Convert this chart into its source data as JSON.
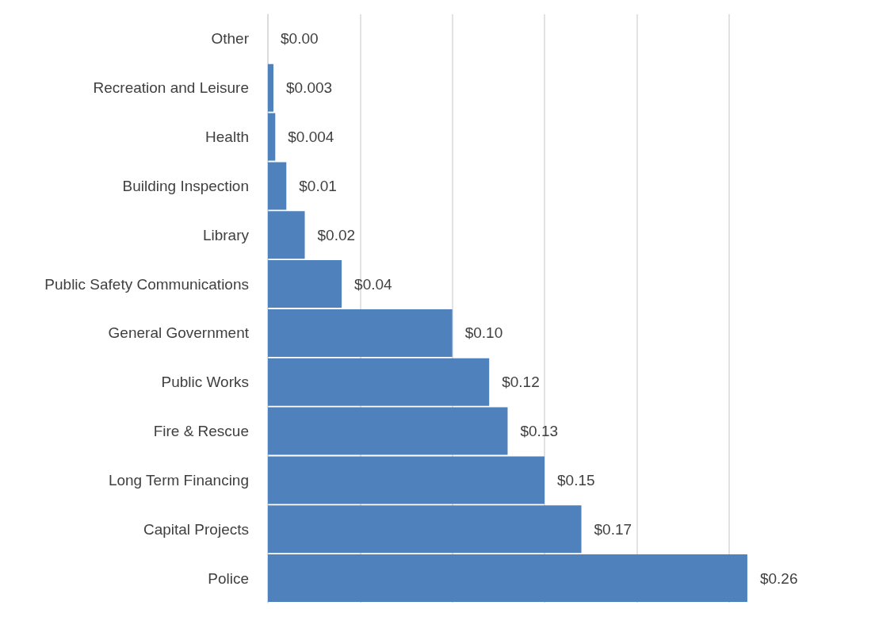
{
  "chart_data": {
    "type": "bar",
    "orientation": "horizontal",
    "categories": [
      "Other",
      "Recreation and Leisure",
      "Health",
      "Building Inspection",
      "Library",
      "Public Safety Communications",
      "General Government",
      "Public Works",
      "Fire & Rescue",
      "Long Term Financing",
      "Capital Projects",
      "Police"
    ],
    "values": [
      0,
      0.003,
      0.004,
      0.01,
      0.02,
      0.04,
      0.1,
      0.12,
      0.13,
      0.15,
      0.17,
      0.26
    ],
    "value_labels": [
      "$0.00",
      "$0.003",
      "$0.004",
      "$0.01",
      "$0.02",
      "$0.04",
      "$0.10",
      "$0.12",
      "$0.13",
      "$0.15",
      "$0.17",
      "$0.26"
    ],
    "color": "#4f81bd",
    "xticks": [
      {
        "value": 0,
        "label": null
      },
      {
        "value": 0.05,
        "label": null
      },
      {
        "value": 0.1,
        "label": null
      },
      {
        "value": 0.15,
        "label": null
      },
      {
        "value": 0.2,
        "label": null
      },
      {
        "value": 0.25,
        "label": null
      }
    ],
    "tick_labels": "y",
    "grid": "x"
  }
}
